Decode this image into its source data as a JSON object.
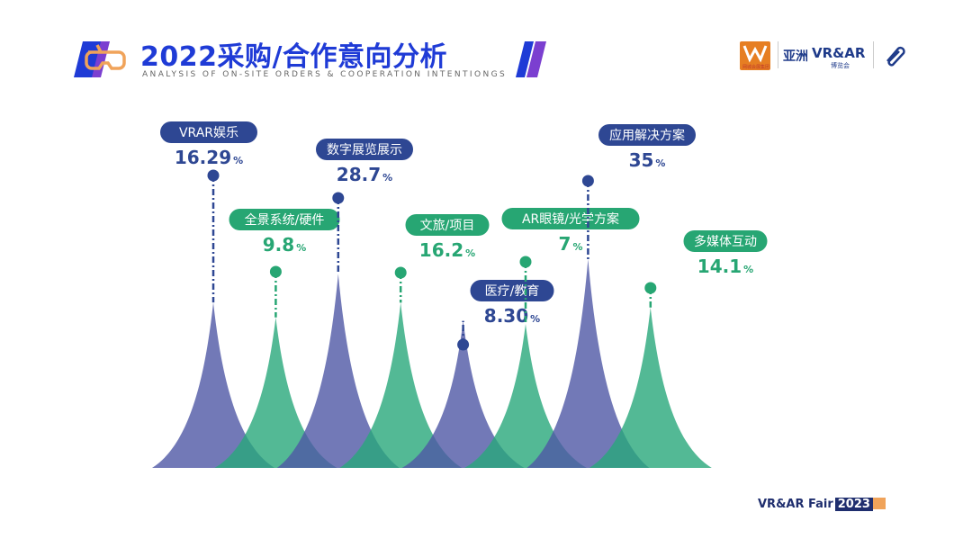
{
  "header": {
    "title": "2022采购/合作意向分析",
    "subtitle": "ANALYSIS OF ON-SITE ORDERS & COOPERATION INTENTIONGS"
  },
  "logos": {
    "asia": "亚洲",
    "vrar": "VR&AR",
    "expo": "博览会",
    "left_caption": "网城会展集团"
  },
  "footer": {
    "event": "VR&AR Fair",
    "year": "2023"
  },
  "colors": {
    "blue": "#4f58a5",
    "green": "#28a77a",
    "label_blue": "#2e4793",
    "label_green": "#27a673",
    "title_blue": "#1f3bd6"
  },
  "chart_data": {
    "type": "area",
    "title": "2022采购/合作意向分析",
    "unit": "%",
    "categories": [
      "VRAR娱乐",
      "全景系统/硬件",
      "数字展览展示",
      "文旅/项目",
      "医疗/教育",
      "AR眼镜/光学方案",
      "应用解决方案",
      "多媒体互动"
    ],
    "values": [
      16.29,
      9.8,
      28.7,
      16.2,
      8.3,
      7,
      35,
      14.1
    ],
    "display_values": [
      "16.29",
      "9.8",
      "28.7",
      "16.2",
      "8.30",
      "7",
      "35",
      "14.1"
    ],
    "color_groups": [
      "blue",
      "green",
      "blue",
      "green",
      "blue",
      "green",
      "blue",
      "green"
    ],
    "ylim": [
      0,
      35
    ]
  }
}
